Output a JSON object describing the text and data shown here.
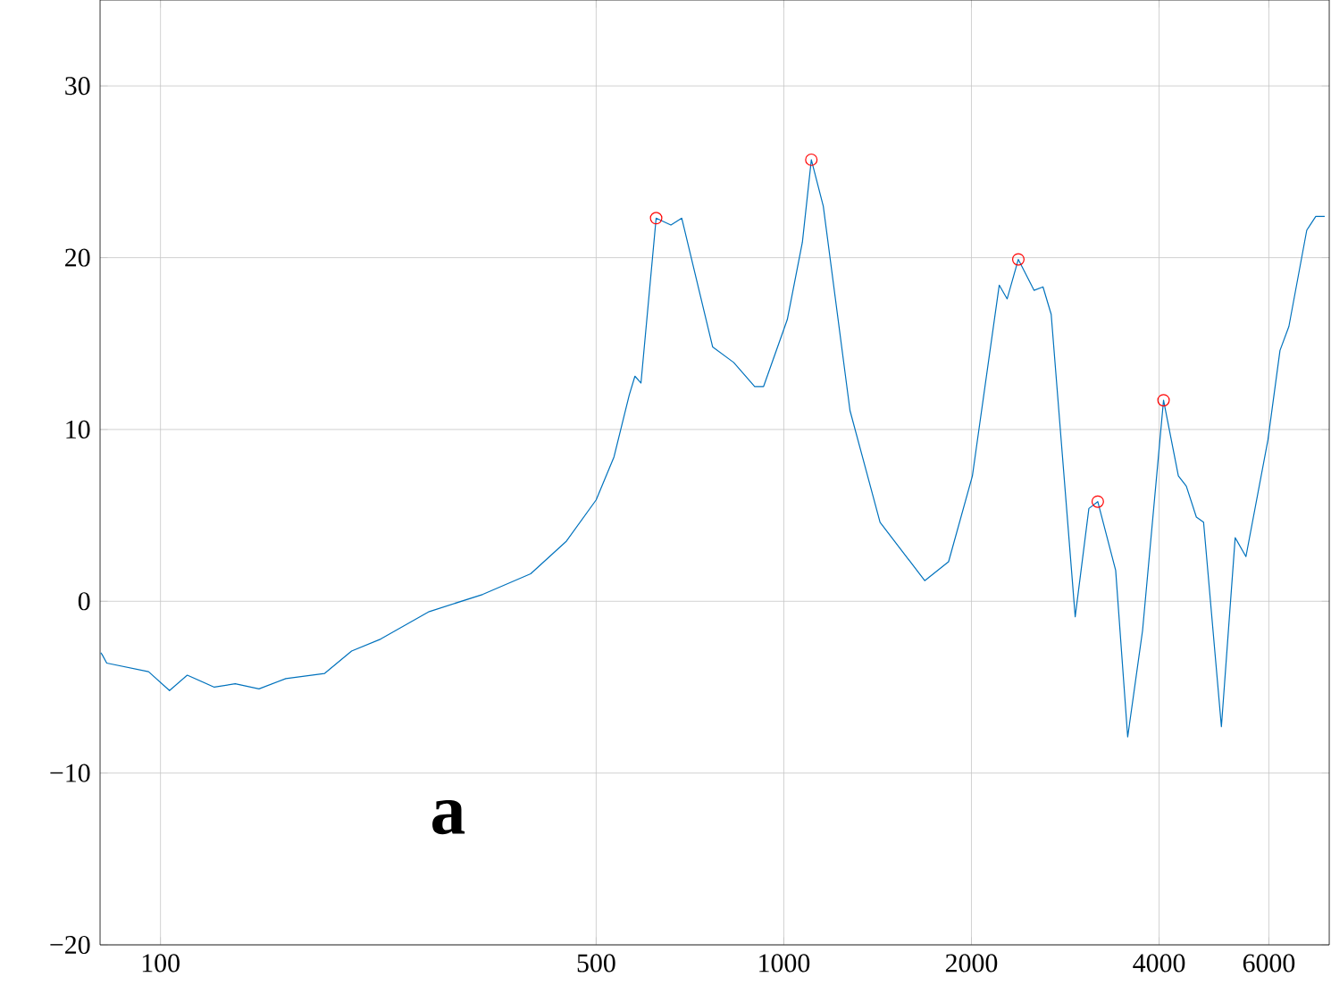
{
  "chart_data": {
    "type": "line",
    "log": "x",
    "grid": true,
    "xlim": [
      80,
      7500
    ],
    "ylim": [
      -20,
      35
    ],
    "xticks": [
      100,
      500,
      1000,
      2000,
      4000,
      6000
    ],
    "yticks": [
      {
        "value": -20,
        "label": "−20"
      },
      {
        "value": -10,
        "label": "−10"
      },
      0,
      10,
      20,
      30
    ],
    "annotations": [
      "a"
    ],
    "series": [
      {
        "color": "#0072bd",
        "marker": "none",
        "x": [
          80.2,
          80.6,
          82.0,
          95.7,
          103.4,
          110.4,
          122.0,
          131.8,
          143.9,
          158.9,
          183.4,
          202.6,
          225.6,
          269.9,
          329,
          392.6,
          448,
          500,
          534,
          565,
          577,
          590,
          624,
          659,
          686,
          769,
          831,
          898,
          928,
          1013,
          1071,
          1107,
          1157,
          1277,
          1427,
          1683,
          1838,
          2007,
          2216,
          2282,
          2378,
          2520,
          2605,
          2685,
          2934,
          3086,
          3189,
          3407,
          3562,
          3763,
          4066,
          4295,
          4423,
          4590,
          4714,
          5035,
          5298,
          5513,
          5980,
          6252,
          6461,
          6902,
          7135,
          7375
        ],
        "values": [
          -3.0,
          -3.1,
          -3.6,
          -4.1,
          -5.2,
          -4.3,
          -5.0,
          -4.8,
          -5.1,
          -4.5,
          -4.2,
          -2.9,
          -2.2,
          -0.6,
          0.4,
          1.6,
          3.5,
          5.9,
          8.4,
          12.0,
          13.1,
          12.7,
          22.3,
          21.9,
          22.3,
          14.8,
          13.9,
          12.5,
          12.5,
          16.4,
          20.9,
          25.7,
          23.0,
          11.1,
          4.6,
          1.2,
          2.3,
          7.3,
          18.4,
          17.6,
          19.9,
          18.1,
          18.3,
          16.7,
          -0.9,
          5.4,
          5.8,
          1.8,
          -7.9,
          -1.7,
          11.7,
          7.3,
          6.7,
          4.9,
          4.6,
          -7.3,
          3.7,
          2.6,
          9.4,
          14.6,
          16.0,
          21.6,
          22.4,
          22.4
        ]
      },
      {
        "type": "scatter",
        "color": "#ff0000",
        "marker": "circle",
        "x": [
          624,
          1107,
          2378,
          3189,
          4066
        ],
        "values": [
          22.3,
          25.7,
          19.9,
          5.8,
          11.7
        ]
      }
    ]
  }
}
